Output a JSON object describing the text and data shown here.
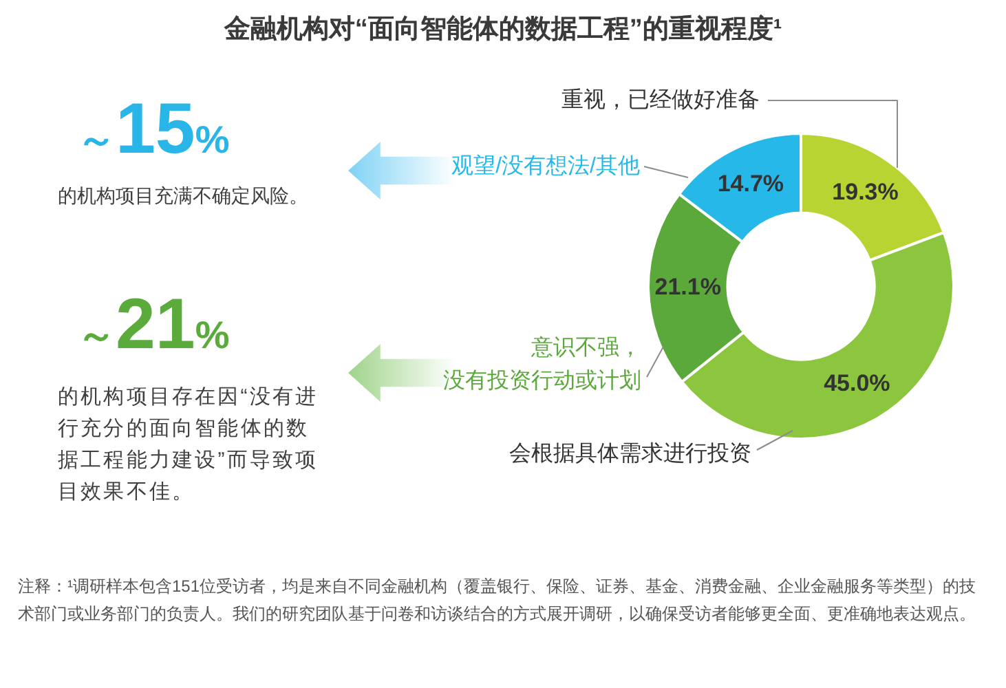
{
  "chart_data": {
    "type": "donut",
    "title": "金融机构对“面向智能体的数据工程”的重视程度¹",
    "categories": [
      "重视，已经做好准备",
      "会根据具体需求进行投资",
      "意识不强，没有投资行动或计划",
      "观望/没有想法/其他"
    ],
    "values": [
      19.3,
      45.0,
      21.1,
      14.7
    ],
    "colors": [
      "#b7d433",
      "#8cc63e",
      "#5ca93b",
      "#26b8e9"
    ],
    "value_labels": [
      "19.3%",
      "45.0%",
      "21.1%",
      "14.7%"
    ],
    "annotations": [
      "～15%",
      "的机构项目充满不确定风险。",
      "～21%",
      "的机构项目存在因“没有进行充分的面向智能体的数据工程能力建设”而导致项目效果不佳。",
      "注释：¹调研样本包含151位受访者，均是来自不同金融机构（覆盖银行、保险、证券、基金、消费金融、企业金融服务等类型）的技术部门或业务部门的负责人。我们的研究团队基于问卷和访谈结合的方式展开调研，以确保受访者能够更全面、更准确地表达观点。"
    ]
  }
}
